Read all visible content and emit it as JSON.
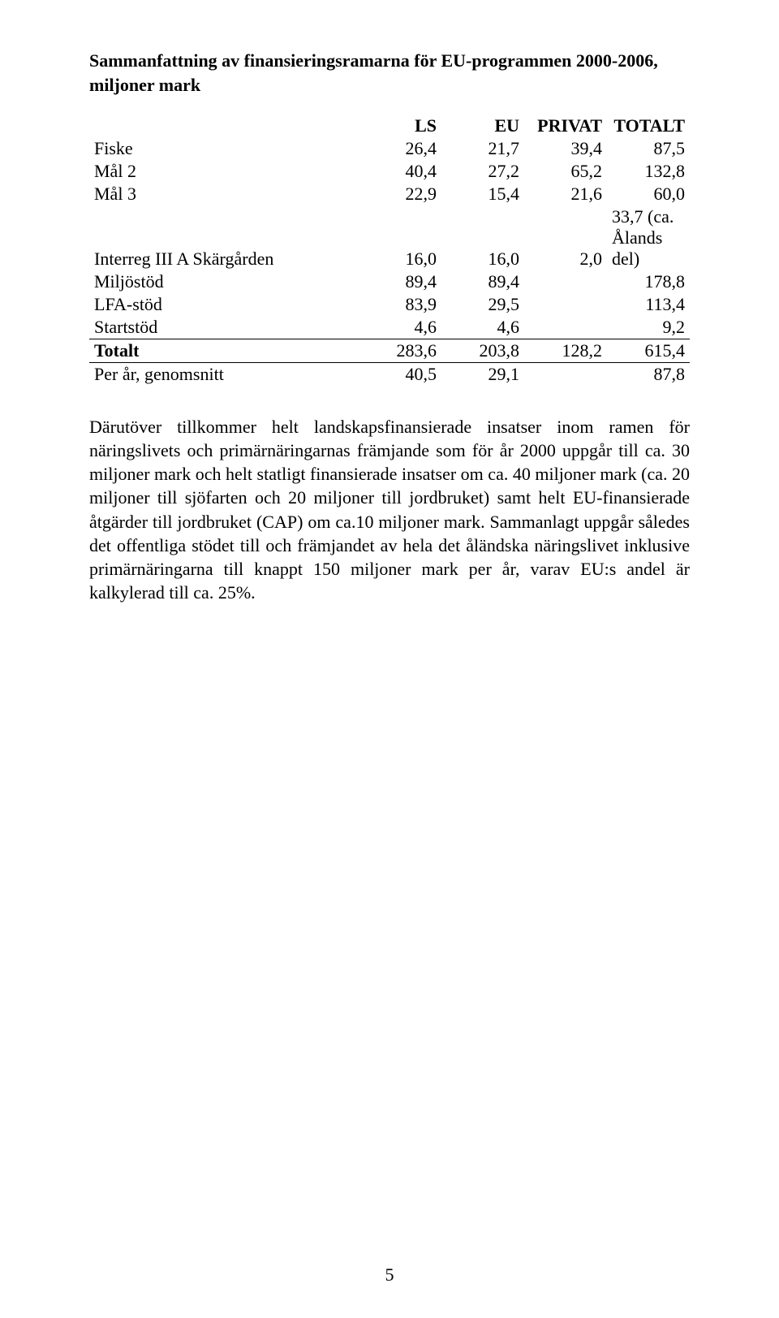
{
  "title": "Sammanfattning av finansieringsramarna för EU-programmen 2000-2006, miljoner mark",
  "table": {
    "headers": {
      "c0": "",
      "c1": "LS",
      "c2": "EU",
      "c3": "PRIVAT",
      "c4": "TOTALT"
    },
    "rows": [
      {
        "label": "Fiske",
        "c1": "26,4",
        "c2": "21,7",
        "c3": "39,4",
        "c4": "87,5"
      },
      {
        "label": "Mål 2",
        "c1": "40,4",
        "c2": "27,2",
        "c3": "65,2",
        "c4": "132,8"
      },
      {
        "label": "Mål 3",
        "c1": "22,9",
        "c2": "15,4",
        "c3": "21,6",
        "c4": "60,0"
      },
      {
        "label": "Interreg III A Skärgården",
        "c1": "16,0",
        "c2": "16,0",
        "c3": "2,0",
        "c4": "33,7 (ca. Ålands del)"
      },
      {
        "label": "Miljöstöd",
        "c1": "89,4",
        "c2": "89,4",
        "c3": "",
        "c4": "178,8"
      },
      {
        "label": "LFA-stöd",
        "c1": "83,9",
        "c2": "29,5",
        "c3": "",
        "c4": "113,4"
      },
      {
        "label": "Startstöd",
        "c1": "4,6",
        "c2": "4,6",
        "c3": "",
        "c4": "9,2"
      },
      {
        "label": "Totalt",
        "c1": "283,6",
        "c2": "203,8",
        "c3": "128,2",
        "c4": "615,4"
      },
      {
        "label": "Per år, genomsnitt",
        "c1": "40,5",
        "c2": "29,1",
        "c3": "",
        "c4": "87,8"
      }
    ]
  },
  "paragraph": "Därutöver tillkommer helt landskapsfinansierade insatser inom ramen för näringslivets och primärnäringarnas främjande som för år 2000 uppgår till ca. 30 miljoner mark och helt statligt finansierade insatser om ca. 40 miljoner mark (ca. 20 miljoner till sjöfarten och 20 miljoner till jordbruket) samt helt EU-finansierade åtgärder till jordbruket (CAP) om ca.10 miljoner mark. Sammanlagt uppgår således det offentliga stödet till och främjandet av hela det åländska näringslivet inklusive primärnäringarna till knappt 150 miljoner mark per år, varav EU:s andel är kalkylerad till ca. 25%.",
  "pageNumber": "5"
}
